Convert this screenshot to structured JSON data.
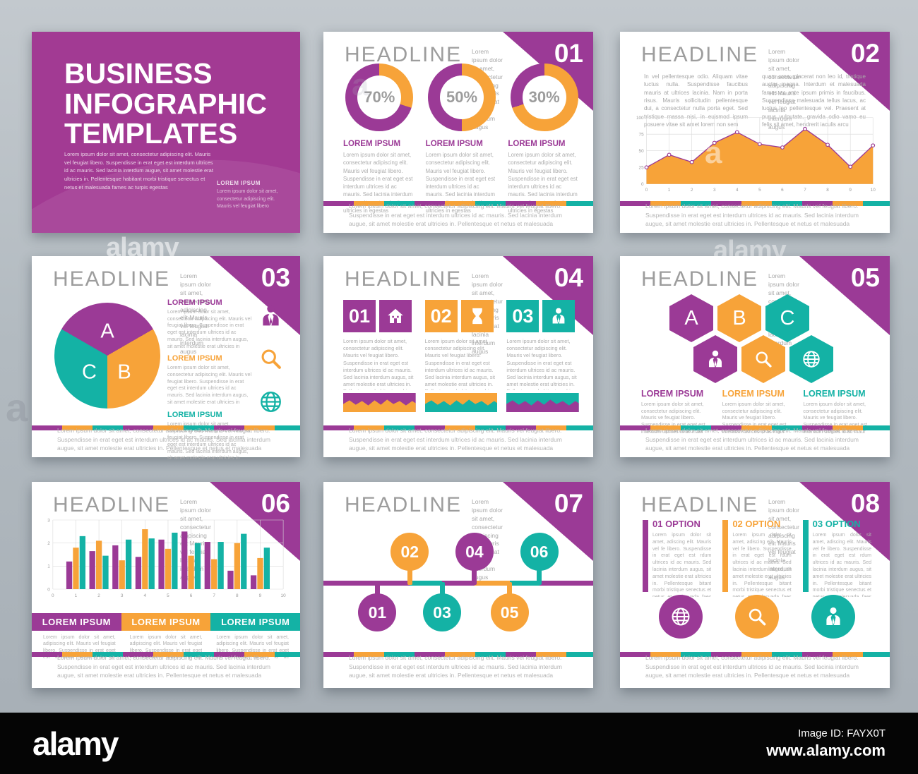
{
  "colors": {
    "purple": "#9b3a96",
    "orange": "#f7a339",
    "teal": "#14b2a5",
    "cover_bg": "#a23a93",
    "badge": "#9b3a96",
    "black_bar": "#050505"
  },
  "watermark": {
    "brand": "alamy",
    "scatter_letter": "a",
    "image_id": "Image ID: FAYX0T",
    "site": "www.alamy.com"
  },
  "cover": {
    "title_line1": "BUSINESS",
    "title_line2": "INFOGRAPHIC",
    "title_line3": "TEMPLATES",
    "paragraph": "Lorem ipsum dolor sit amet, consectetur adipiscing elit. Mauris vel feugiat libero. Suspendisse in erat eget est interdum ultrices id ac mauris. Sed lacinia interdum augue, sit amet molestie erat ultricies in. Pellentesque habitant morbi tristique senectus et netus et malesuada fames ac turpis egestas",
    "caption_title": "LOREM IPSUM",
    "caption_body": "Lorem ipsum dolor sit amet, consectetur adipiscing elit. Mauris vel feugiat libero"
  },
  "shared": {
    "headline": "HEADLINE",
    "subtitle": "Lorem ipsum dolor sit amet, consectetur adipiscing elit Mauris vel feugiat lacinia interdum augus",
    "footer": "Lorem ipsum dolor sit amet, consectetur adipiscing elit. Mauris vel feugiat libero. Suspendisse in erat eget est interdum ultrices id ac mauris. Sed lacinia interdum augue, sit amet molestie erat ultricies in. Pellentesque et netus et malesuada",
    "lorem_heading": "LOREM IPSUM",
    "body_medium": "Lorem ipsum dolor sit amet, consectetur adipiscing elit. Mauris vel feugiat libero. Suspendisse in erat eget est interdum ultrices id ac mauris. Sed lacinia interdum augus, sit amet molestie erat ultricies in egestas",
    "body_short": "Lorem ipsum dolor sit amet, consectetur adipiscing elit. Mauris vel feugiat libero. Suspendisse in erat eget est interdum ultrices id ac mauris. Sed lacinia interdum augus, sit amet molestie erat ultricies in",
    "body_long": "Lorem ipsum dolor sit amet, consectetur adipiscing elit. Mauris vel feugiat libero. Suspendisse in erat eget est interdum ultrices id ac mauris. Sed lacinia interdum augus, sit amet molestie erat ultricies in. Pellentesque habitant morbi tristique senectus et netus et malesuada fames ac turpis egestas",
    "body_tiny": "Lorem ipsum dolor sit amet, adipiscing elit. Mauris vel feugiat libero. Suspendisse in erat eget est interdum ultrices id ac mauris. Sed lacinia inte molestie erat ultricies in",
    "body_hex": "Lorem ipsum dolor sit amet, consectetur adipiscing elit. Mauris ve feugiat libero. Suspendisse in erat eget est interdum ultrices id ac maur",
    "body_option": "Lorem ipsum dolor sit amet, adiscing elit. Mauris vel fe libero. Suspendisse in erat eget est rdum ultrices id ac mauris. Sed lacinia interdum augus, sit amet molestie erat ultricies in. Pellentesque bitant morbi tristique senectus et netus et malesuada faes ac turpis endisse iaculis porta metus"
  },
  "slides": [
    {
      "number": "01"
    },
    {
      "number": "02",
      "col1": "In vel pellentesque odio. Aliquam vitae luctus nulla. Suspendisse faucibus mauris at ultrices lacinia. Nam in porta risus. Mauris sollicitudin pellentesque dui, a consectetur nulla porta eget. Sed tristique massa nisi, in euismod ipsum posuere vitae sit amet lorem non sem",
      "col2": "quam urna, placerat non leo id, tristique auctor magna. Interdum et malesuada fames ac ante ipsum primis in faucibus. Suspendisse malesuada tellus lacus, ac luctus leo pellentesque vel. Praesent at purus vulputate, gravida odio vamo eu felis sit amet, hendrerit iaculis arcu"
    },
    {
      "number": "03",
      "legend": [
        {
          "heading": "LOREM IPSUM",
          "color": "purple",
          "icon": "businessman"
        },
        {
          "heading": "LOREM IPSUM",
          "color": "orange",
          "icon": "magnifier"
        },
        {
          "heading": "LOREM IPSUM",
          "color": "teal",
          "icon": "globe"
        }
      ]
    },
    {
      "number": "04",
      "options": [
        {
          "num": "01",
          "color": "purple",
          "icon": "house",
          "strip": {
            "bg": "purple",
            "fg": "orange"
          }
        },
        {
          "num": "02",
          "color": "orange",
          "icon": "hourglass",
          "strip": {
            "bg": "orange",
            "fg": "teal"
          }
        },
        {
          "num": "03",
          "color": "teal",
          "icon": "businessman",
          "strip": {
            "bg": "teal",
            "fg": "purple"
          }
        }
      ]
    },
    {
      "number": "05",
      "hex_letters": [
        {
          "label": "A",
          "color": "purple"
        },
        {
          "label": "B",
          "color": "orange"
        },
        {
          "label": "C",
          "color": "teal"
        }
      ],
      "hex_icons": [
        {
          "icon": "businessman",
          "color": "purple"
        },
        {
          "icon": "magnifier",
          "color": "orange"
        },
        {
          "icon": "globe",
          "color": "teal"
        }
      ],
      "legend": [
        {
          "heading": "LOREM IPSUM",
          "color": "purple"
        },
        {
          "heading": "LOREM IPSUM",
          "color": "orange"
        },
        {
          "heading": "LOREM IPSUM",
          "color": "teal"
        }
      ]
    },
    {
      "number": "06",
      "columns": [
        {
          "heading": "LOREM IPSUM",
          "color": "purple"
        },
        {
          "heading": "LOREM IPSUM",
          "color": "orange"
        },
        {
          "heading": "LOREM IPSUM",
          "color": "teal"
        }
      ]
    },
    {
      "number": "07",
      "timeline": {
        "segments": [
          {
            "w": 32,
            "color": "purple"
          },
          {
            "w": 12,
            "color": "teal"
          },
          {
            "w": 12,
            "color": "purple"
          },
          {
            "w": 13,
            "color": "orange"
          },
          {
            "w": 11,
            "color": "teal"
          },
          {
            "w": 20,
            "color": "purple"
          }
        ],
        "items": [
          {
            "label": "01",
            "color": "purple",
            "side": "below",
            "x": 20
          },
          {
            "label": "02",
            "color": "orange",
            "side": "above",
            "x": 32
          },
          {
            "label": "03",
            "color": "teal",
            "side": "below",
            "x": 44
          },
          {
            "label": "04",
            "color": "purple",
            "side": "above",
            "x": 56
          },
          {
            "label": "05",
            "color": "orange",
            "side": "below",
            "x": 69
          },
          {
            "label": "06",
            "color": "teal",
            "side": "above",
            "x": 80
          }
        ]
      }
    },
    {
      "number": "08",
      "options": [
        {
          "title": "01 OPTION",
          "color": "purple"
        },
        {
          "title": "02 OPTION",
          "color": "orange"
        },
        {
          "title": "03 OPTION",
          "color": "teal"
        }
      ],
      "circles": [
        {
          "icon": "globe",
          "color": "purple"
        },
        {
          "icon": "magnifier",
          "color": "orange"
        },
        {
          "icon": "businessman",
          "color": "teal"
        }
      ]
    }
  ],
  "chart_data": [
    {
      "type": "donut",
      "slide": "01",
      "labels": [
        "70%",
        "50%",
        "30%"
      ],
      "values": [
        70,
        50,
        30
      ],
      "filled_color": "purple",
      "rest_color": "orange",
      "headings": [
        "LOREM IPSUM",
        "LOREM IPSUM",
        "LOREM IPSUM"
      ]
    },
    {
      "type": "area",
      "slide": "02",
      "x": [
        0,
        1,
        2,
        3,
        4,
        5,
        6,
        7,
        8,
        9,
        10
      ],
      "values": [
        25,
        44,
        33,
        62,
        78,
        60,
        55,
        83,
        59,
        26,
        58
      ],
      "ylim": [
        0,
        100
      ],
      "yticks": [
        0,
        25,
        50,
        75,
        100
      ],
      "fill": "orange",
      "line": "purple",
      "grid": true
    },
    {
      "type": "pie",
      "slide": "03",
      "slices": [
        {
          "label": "A",
          "value": 33.3,
          "color": "purple"
        },
        {
          "label": "B",
          "value": 33.3,
          "color": "orange"
        },
        {
          "label": "C",
          "value": 33.4,
          "color": "teal"
        }
      ]
    },
    {
      "type": "bar",
      "slide": "06",
      "categories": [
        1,
        2,
        3,
        4,
        5,
        6,
        7,
        8,
        9
      ],
      "series": [
        {
          "name": "series-purple",
          "color": "purple",
          "values": [
            1.2,
            1.65,
            1.9,
            1.4,
            2.15,
            2.5,
            2.05,
            0.8,
            0.6
          ]
        },
        {
          "name": "series-orange",
          "color": "orange",
          "values": [
            1.8,
            2.1,
            1.25,
            2.6,
            1.75,
            1.45,
            1.3,
            2.0,
            1.35
          ]
        },
        {
          "name": "series-teal",
          "color": "teal",
          "values": [
            2.3,
            1.45,
            2.15,
            2.2,
            2.45,
            2.0,
            2.05,
            2.4,
            1.8
          ]
        }
      ],
      "ylim": [
        0,
        3
      ],
      "yticks": [
        0,
        1,
        2,
        3
      ],
      "xticks": [
        0,
        1,
        2,
        3,
        4,
        5,
        6,
        7,
        8,
        9,
        10
      ],
      "grid": true
    }
  ]
}
